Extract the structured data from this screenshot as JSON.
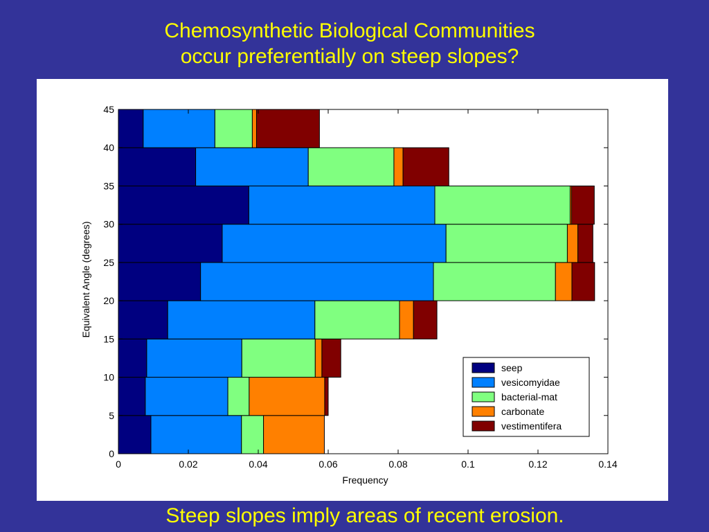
{
  "slide": {
    "title_line1": "Chemosynthetic Biological Communities",
    "title_line2": "occur preferentially on steep slopes?",
    "caption": "Steep slopes imply areas of recent erosion.",
    "background_color": "#333399",
    "text_color": "#ffff00"
  },
  "chart_data": {
    "type": "bar",
    "orientation": "horizontal",
    "stacked": true,
    "xlabel": "Frequency",
    "ylabel": "Equivalent Angle (degrees)",
    "xlim": [
      0,
      0.14
    ],
    "ylim": [
      0,
      45
    ],
    "xticks": [
      "0",
      "0.02",
      "0.04",
      "0.06",
      "0.08",
      "0.1",
      "0.12",
      "0.14"
    ],
    "yticks": [
      "0",
      "5",
      "10",
      "15",
      "20",
      "25",
      "30",
      "35",
      "40",
      "45"
    ],
    "bins": [
      {
        "y0": 0,
        "y1": 5
      },
      {
        "y0": 5,
        "y1": 10
      },
      {
        "y0": 10,
        "y1": 15
      },
      {
        "y0": 15,
        "y1": 20
      },
      {
        "y0": 20,
        "y1": 25
      },
      {
        "y0": 25,
        "y1": 30
      },
      {
        "y0": 30,
        "y1": 35
      },
      {
        "y0": 35,
        "y1": 40
      },
      {
        "y0": 40,
        "y1": 45
      }
    ],
    "series": [
      {
        "name": "seep",
        "color": "#000080",
        "values": [
          0.0093,
          0.0077,
          0.0081,
          0.0141,
          0.0235,
          0.0297,
          0.0373,
          0.0221,
          0.0071
        ]
      },
      {
        "name": "vesicomyidae",
        "color": "#0080ff",
        "values": [
          0.0259,
          0.0236,
          0.0272,
          0.0421,
          0.0666,
          0.064,
          0.0532,
          0.0322,
          0.0205
        ]
      },
      {
        "name": "bacterial-mat",
        "color": "#80ff80",
        "values": [
          0.0063,
          0.0061,
          0.021,
          0.0242,
          0.0349,
          0.0347,
          0.0387,
          0.0245,
          0.0107
        ]
      },
      {
        "name": "carbonate",
        "color": "#ff8000",
        "values": [
          0.0174,
          0.0216,
          0.0019,
          0.004,
          0.0047,
          0.003,
          0.0004,
          0.0026,
          0.0012
        ]
      },
      {
        "name": "vestimentifera",
        "color": "#800000",
        "values": [
          0.0,
          0.001,
          0.0054,
          0.0067,
          0.0065,
          0.0043,
          0.0065,
          0.0131,
          0.018
        ]
      }
    ],
    "legend": {
      "placement": "bottom-right"
    },
    "grid": false
  }
}
